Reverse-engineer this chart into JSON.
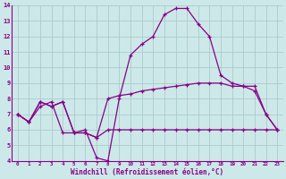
{
  "background_color": "#cde8e8",
  "grid_color": "#aacccc",
  "line_color": "#880088",
  "xlim": [
    -0.5,
    23.5
  ],
  "ylim": [
    4,
    14
  ],
  "xticks": [
    0,
    1,
    2,
    3,
    4,
    5,
    6,
    7,
    8,
    9,
    10,
    11,
    12,
    13,
    14,
    15,
    16,
    17,
    18,
    19,
    20,
    21,
    22,
    23
  ],
  "yticks": [
    4,
    5,
    6,
    7,
    8,
    9,
    10,
    11,
    12,
    13,
    14
  ],
  "xlabel": "Windchill (Refroidissement éolien,°C)",
  "series": [
    [
      7.0,
      6.5,
      7.8,
      7.5,
      7.8,
      5.8,
      6.0,
      4.2,
      4.0,
      8.0,
      10.8,
      11.5,
      12.0,
      13.4,
      13.8,
      13.8,
      12.8,
      12.0,
      9.5,
      9.0,
      8.8,
      8.8,
      7.0,
      6.0
    ],
    [
      7.0,
      6.5,
      7.8,
      7.5,
      7.8,
      5.8,
      5.8,
      5.5,
      8.0,
      8.2,
      8.3,
      8.5,
      8.6,
      8.7,
      8.8,
      8.9,
      9.0,
      9.0,
      9.0,
      8.8,
      8.8,
      8.5,
      7.0,
      6.0
    ],
    [
      7.0,
      6.5,
      7.5,
      7.8,
      5.8,
      5.8,
      5.8,
      5.5,
      6.0,
      6.0,
      6.0,
      6.0,
      6.0,
      6.0,
      6.0,
      6.0,
      6.0,
      6.0,
      6.0,
      6.0,
      6.0,
      6.0,
      6.0,
      6.0
    ]
  ]
}
